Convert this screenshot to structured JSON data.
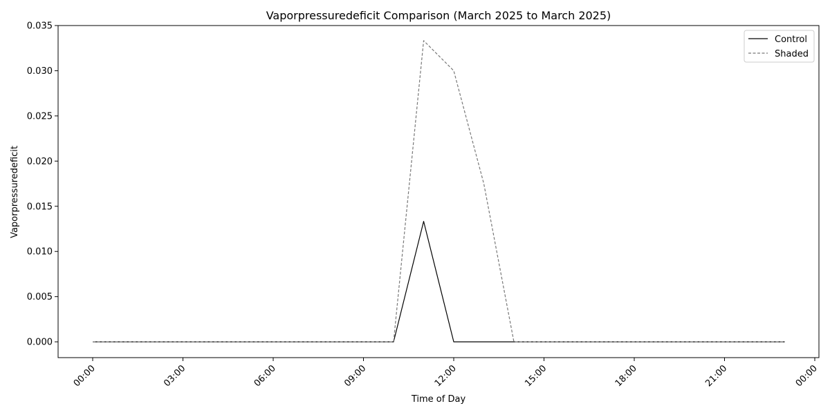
{
  "chart_data": {
    "type": "line",
    "title": "Vaporpressuredeficit Comparison (March 2025 to March 2025)",
    "xlabel": "Time of Day",
    "ylabel": "Vaporpressuredeficit",
    "x": [
      "00:00",
      "01:00",
      "02:00",
      "03:00",
      "04:00",
      "05:00",
      "06:00",
      "07:00",
      "08:00",
      "09:00",
      "10:00",
      "11:00",
      "12:00",
      "13:00",
      "14:00",
      "15:00",
      "16:00",
      "17:00",
      "18:00",
      "19:00",
      "20:00",
      "21:00",
      "22:00",
      "23:00"
    ],
    "x_ticks": [
      "00:00",
      "03:00",
      "06:00",
      "09:00",
      "12:00",
      "15:00",
      "18:00",
      "21:00",
      "00:00"
    ],
    "y_ticks": [
      "0.000",
      "0.005",
      "0.010",
      "0.015",
      "0.020",
      "0.025",
      "0.030",
      "0.035"
    ],
    "ylim": [
      -0.00175,
      0.035
    ],
    "series": [
      {
        "name": "Control",
        "color": "#000000",
        "dash": "solid",
        "values": [
          0,
          0,
          0,
          0,
          0,
          0,
          0,
          0,
          0,
          0,
          0,
          0.01333,
          0,
          0,
          0,
          0,
          0,
          0,
          0,
          0,
          0,
          0,
          0,
          0
        ]
      },
      {
        "name": "Shaded",
        "color": "#777777",
        "dash": "dashed",
        "values": [
          0,
          0,
          0,
          0,
          0,
          0,
          0,
          0,
          0,
          0,
          0,
          0.03333,
          0.03,
          0.0175,
          0,
          0,
          0,
          0,
          0,
          0,
          0,
          0,
          0,
          0
        ]
      }
    ],
    "grid": false,
    "legend": "top-right"
  }
}
